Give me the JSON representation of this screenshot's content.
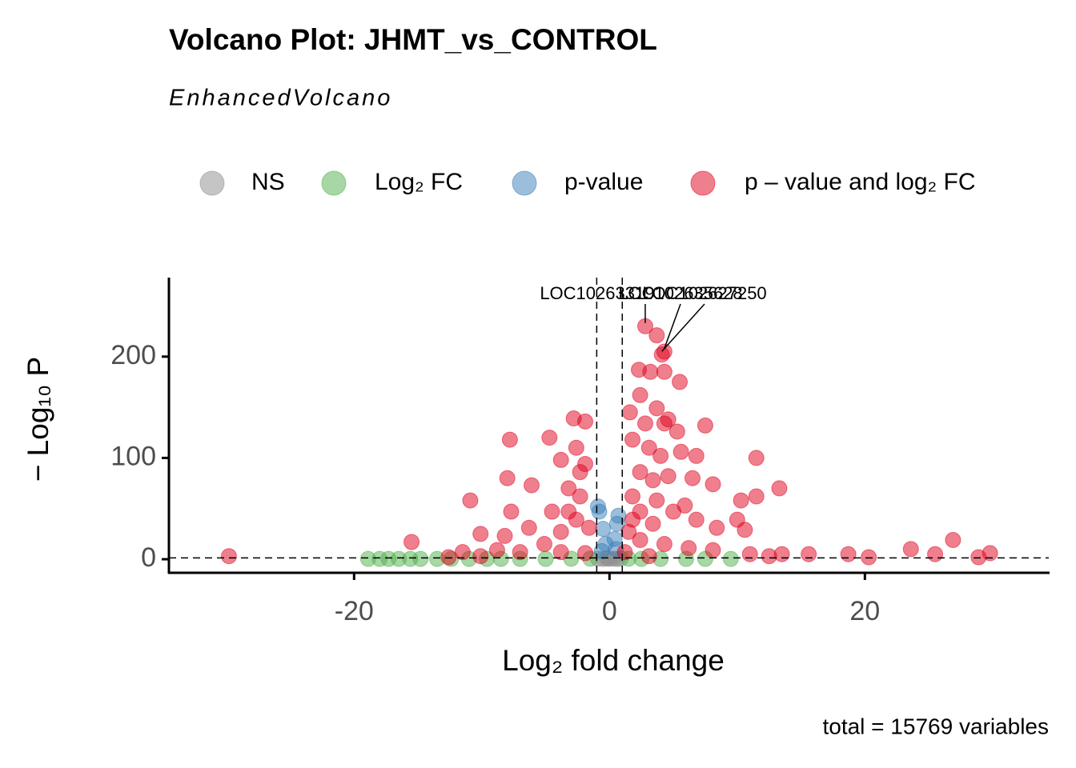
{
  "chart_data": {
    "type": "scatter",
    "title": "Volcano Plot: JHMT_vs_CONTROL",
    "subtitle": "EnhancedVolcano",
    "x_label": "Log₂ fold change",
    "y_label": "− Log₁₀ P",
    "caption": "total = 15769 variables",
    "xlim": [
      -34.5,
      34.4
    ],
    "ylim": [
      -13.4,
      278
    ],
    "xticks": [
      -20,
      0,
      20
    ],
    "yticks": [
      0,
      100,
      200
    ],
    "cutoffs": {
      "x": [
        -1,
        1
      ],
      "y": 1.3
    },
    "series": [
      {
        "name": "NS",
        "color": "#8c8c8c",
        "x": [
          -0.9,
          -0.5,
          -0.2,
          0,
          0.3,
          0.6,
          0.9
        ],
        "values": [
          0.5,
          0.3,
          0.8,
          0.4,
          0.6,
          0.2,
          0.8
        ]
      },
      {
        "name": "Log₂ FC",
        "color": "#4daf4a",
        "x": [
          -18.9,
          -18,
          -17.3,
          -16.5,
          -15.6,
          -14.8,
          -13.5,
          -12.4,
          -11,
          -9.6,
          -8.5,
          -7,
          -5,
          -3,
          -1.5,
          1.5,
          2.5,
          4,
          6,
          7.5,
          9.5
        ],
        "values": [
          0.3,
          0.3,
          0.3,
          0.3,
          0.3,
          0.3,
          0.3,
          0.3,
          0.3,
          0.3,
          0.3,
          0.3,
          0.3,
          0.5,
          0.5,
          0.5,
          0.3,
          0.3,
          0.3,
          0.3,
          0.3
        ]
      },
      {
        "name": "p-value",
        "color": "#377eb8",
        "x": [
          -0.9,
          -0.8,
          -0.5,
          -0.3,
          0.4,
          0.6,
          0.7,
          0.5,
          -0.6
        ],
        "values": [
          52,
          47,
          30,
          15,
          20,
          35,
          43,
          10,
          8
        ]
      },
      {
        "name": "p – value and log₂ FC",
        "color": "#e0001b",
        "x": [
          2.8,
          3.7,
          4.3,
          4.1,
          5.5,
          2.3,
          3.2,
          2.4,
          4.3,
          3.7,
          1.6,
          4.6,
          7.5,
          5.3,
          1.8,
          3.1,
          4.0,
          5.6,
          6.8,
          11.5,
          2.4,
          4.6,
          6.5,
          8.1,
          11.5,
          13.3,
          1.8,
          3.7,
          5.9,
          1.8,
          3.4,
          6.8,
          10.3,
          10.0,
          8.4,
          10.6,
          2.4,
          4.3,
          6.2,
          8.1,
          1.2,
          3.1,
          11.0,
          12.5,
          13.5,
          15.6,
          18.7,
          20.3,
          23.6,
          25.5,
          26.9,
          28.9,
          29.8,
          3.4,
          5.0,
          2.4,
          1.5,
          2.8,
          4.3,
          -2.8,
          -1.9,
          -4.7,
          -7.8,
          -2.6,
          -3.8,
          -1.9,
          -8.0,
          -6.1,
          -3.2,
          -2.3,
          -10.9,
          -7.7,
          -4.5,
          -2.6,
          -10.1,
          -8.2,
          -6.3,
          -3.8,
          -1.6,
          -15.5,
          -11.5,
          -8.8,
          -7.0,
          -3.8,
          -1.9,
          -29.8,
          -10.1,
          -12.6,
          -5.1,
          -3.2,
          -2.3
        ],
        "values": [
          230,
          221,
          205,
          202,
          175,
          187,
          185,
          162,
          185,
          149,
          145,
          138,
          132,
          126,
          118,
          110,
          102,
          106,
          102,
          100,
          86,
          82,
          80,
          74,
          62,
          70,
          62,
          58,
          53,
          39,
          35,
          39,
          58,
          39,
          31,
          29,
          19,
          15,
          11,
          9,
          7,
          3,
          5,
          3,
          5,
          5,
          5,
          2,
          10,
          5,
          19,
          2,
          6,
          78,
          47,
          47,
          27,
          134,
          134,
          139,
          136,
          120,
          118,
          110,
          98,
          94,
          80,
          73,
          70,
          62,
          58,
          47,
          47,
          39,
          25,
          23,
          31,
          27,
          31,
          17,
          7,
          9,
          7,
          7,
          6,
          3,
          3,
          2,
          15,
          47,
          86
        ]
      }
    ],
    "labels": [
      {
        "text": "LOC102633191",
        "x": 2.8,
        "y": 230
      },
      {
        "text": "LOC102635628",
        "x": 4.3,
        "y": 205
      },
      {
        "text": "LOC102627250",
        "x": 4.1,
        "y": 202
      }
    ]
  }
}
